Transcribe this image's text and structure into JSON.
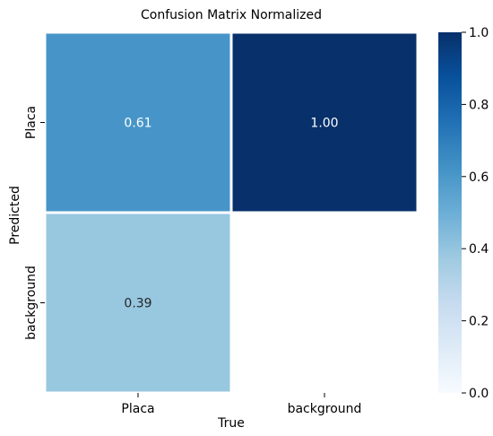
{
  "chart_data": {
    "type": "heatmap",
    "title": "Confusion Matrix Normalized",
    "xlabel": "True",
    "ylabel": "Predicted",
    "x_categories": [
      "Placa",
      "background"
    ],
    "y_categories": [
      "Placa",
      "background"
    ],
    "values": [
      [
        0.61,
        1.0
      ],
      [
        0.39,
        null
      ]
    ],
    "cell_labels": [
      [
        "0.61",
        "1.00"
      ],
      [
        "0.39",
        ""
      ]
    ],
    "colorbar": {
      "range": [
        0.0,
        1.0
      ],
      "ticks": [
        "0.0",
        "0.2",
        "0.4",
        "0.6",
        "0.8",
        "1.0"
      ],
      "colormap": "Blues"
    },
    "grid": false,
    "legend": "colorbar-right"
  }
}
